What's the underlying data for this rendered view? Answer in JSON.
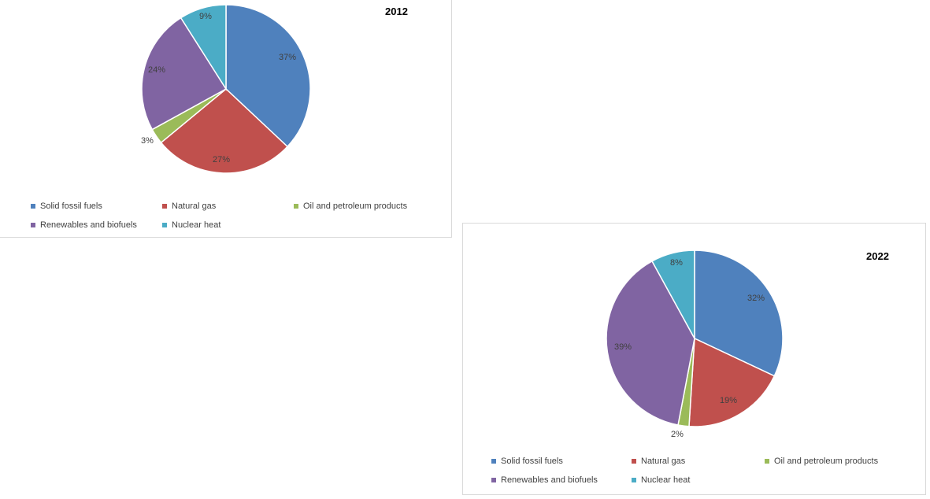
{
  "chart_data": [
    {
      "type": "pie",
      "title": "2012",
      "categories": [
        "Solid fossil fuels",
        "Natural gas",
        "Oil and petroleum products",
        "Renewables and biofuels",
        "Nuclear heat"
      ],
      "values": [
        37,
        27,
        3,
        24,
        9
      ],
      "labels": [
        "37%",
        "27%",
        "3%",
        "24%",
        "9%"
      ],
      "colors": [
        "#4f81bd",
        "#c0504d",
        "#9bbb59",
        "#8064a2",
        "#4bacc6"
      ],
      "legend_position": "bottom"
    },
    {
      "type": "pie",
      "title": "2022",
      "categories": [
        "Solid fossil fuels",
        "Natural gas",
        "Oil and petroleum products",
        "Renewables and biofuels",
        "Nuclear heat"
      ],
      "values": [
        32,
        19,
        2,
        39,
        8
      ],
      "labels": [
        "32%",
        "19%",
        "2%",
        "39%",
        "8%"
      ],
      "colors": [
        "#4f81bd",
        "#c0504d",
        "#9bbb59",
        "#8064a2",
        "#4bacc6"
      ],
      "legend_position": "bottom"
    }
  ]
}
